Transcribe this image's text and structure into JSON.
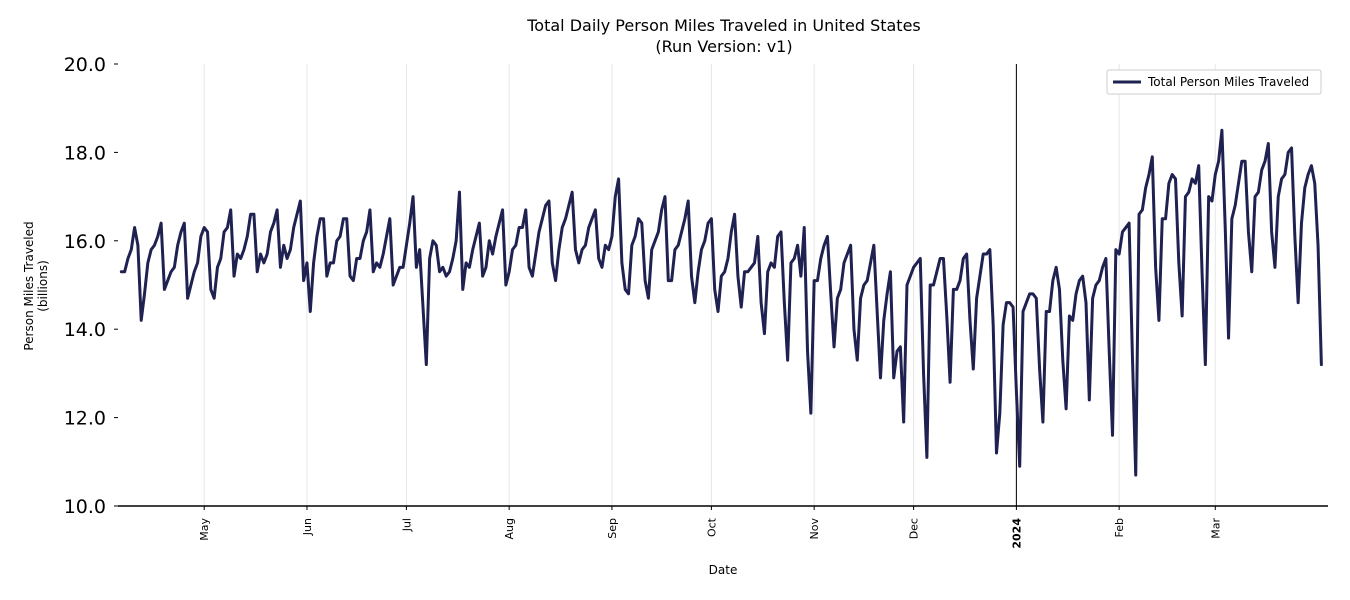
{
  "chart_data": {
    "type": "line",
    "title": "Total Daily Person Miles Traveled in United States",
    "subtitle": "(Run Version: v1)",
    "xlabel": "Date",
    "ylabel": "Person Miles Traveled",
    "ylabel_unit": "(billions)",
    "ylim": [
      10.0,
      20.0
    ],
    "yticks": [
      "10.0",
      "12.0",
      "14.0",
      "16.0",
      "18.0",
      "20.0"
    ],
    "x_range_days": [
      0,
      365
    ],
    "xticks": [
      {
        "label": "May",
        "day": 26,
        "bold": false
      },
      {
        "label": "Jun",
        "day": 57,
        "bold": false
      },
      {
        "label": "Jul",
        "day": 87,
        "bold": false
      },
      {
        "label": "Aug",
        "day": 118,
        "bold": false
      },
      {
        "label": "Sep",
        "day": 149,
        "bold": false
      },
      {
        "label": "Oct",
        "day": 179,
        "bold": false
      },
      {
        "label": "Nov",
        "day": 210,
        "bold": false
      },
      {
        "label": "Dec",
        "day": 240,
        "bold": false
      },
      {
        "label": "2024",
        "day": 271,
        "bold": true
      },
      {
        "label": "Feb",
        "day": 302,
        "bold": false
      },
      {
        "label": "Mar",
        "day": 331,
        "bold": false
      }
    ],
    "grid": "vertical",
    "reference_line_day": 271,
    "legend": {
      "position": "top-right"
    },
    "series": [
      {
        "name": "Total Person Miles Traveled",
        "color": "#1f2151",
        "start_day": 1,
        "values": [
          15.3,
          15.3,
          15.6,
          15.8,
          16.3,
          15.9,
          14.2,
          14.8,
          15.5,
          15.8,
          15.9,
          16.1,
          16.4,
          14.9,
          15.1,
          15.3,
          15.4,
          15.9,
          16.2,
          16.4,
          14.7,
          15.0,
          15.3,
          15.5,
          16.1,
          16.3,
          16.2,
          14.9,
          14.7,
          15.4,
          15.6,
          16.2,
          16.3,
          16.7,
          15.2,
          15.7,
          15.6,
          15.8,
          16.1,
          16.6,
          16.6,
          15.3,
          15.7,
          15.5,
          15.7,
          16.2,
          16.4,
          16.7,
          15.4,
          15.9,
          15.6,
          15.8,
          16.3,
          16.6,
          16.9,
          15.1,
          15.5,
          14.4,
          15.5,
          16.1,
          16.5,
          16.5,
          15.2,
          15.5,
          15.5,
          16.0,
          16.1,
          16.5,
          16.5,
          15.2,
          15.1,
          15.6,
          15.6,
          16.0,
          16.2,
          16.7,
          15.3,
          15.5,
          15.4,
          15.7,
          16.1,
          16.5,
          15.0,
          15.2,
          15.4,
          15.4,
          15.9,
          16.4,
          17.0,
          15.4,
          15.8,
          14.5,
          13.2,
          15.6,
          16.0,
          15.9,
          15.3,
          15.4,
          15.2,
          15.3,
          15.6,
          16.0,
          17.1,
          14.9,
          15.5,
          15.4,
          15.8,
          16.1,
          16.4,
          15.2,
          15.4,
          16.0,
          15.7,
          16.1,
          16.4,
          16.7,
          15.0,
          15.3,
          15.8,
          15.9,
          16.3,
          16.3,
          16.7,
          15.4,
          15.2,
          15.7,
          16.2,
          16.5,
          16.8,
          16.9,
          15.5,
          15.1,
          15.8,
          16.3,
          16.5,
          16.8,
          17.1,
          15.8,
          15.5,
          15.8,
          15.9,
          16.3,
          16.5,
          16.7,
          15.6,
          15.4,
          15.9,
          15.8,
          16.1,
          17.0,
          17.4,
          15.5,
          14.9,
          14.8,
          15.9,
          16.1,
          16.5,
          16.4,
          15.1,
          14.7,
          15.8,
          16.0,
          16.2,
          16.7,
          17.0,
          15.1,
          15.1,
          15.8,
          15.9,
          16.2,
          16.5,
          16.9,
          15.2,
          14.6,
          15.3,
          15.8,
          16.0,
          16.4,
          16.5,
          14.9,
          14.4,
          15.2,
          15.3,
          15.6,
          16.2,
          16.6,
          15.2,
          14.5,
          15.3,
          15.3,
          15.4,
          15.5,
          16.1,
          14.6,
          13.9,
          15.3,
          15.5,
          15.4,
          16.1,
          16.2,
          14.6,
          13.3,
          15.5,
          15.6,
          15.9,
          15.2,
          16.3,
          13.5,
          12.1,
          15.1,
          15.1,
          15.6,
          15.9,
          16.1,
          14.8,
          13.6,
          14.7,
          14.9,
          15.5,
          15.7,
          15.9,
          14.0,
          13.3,
          14.7,
          15.0,
          15.1,
          15.5,
          15.9,
          14.4,
          12.9,
          14.2,
          14.8,
          15.3,
          12.9,
          13.5,
          13.6,
          11.9,
          15.0,
          15.2,
          15.4,
          15.5,
          15.6,
          13.0,
          11.1,
          15.0,
          15.0,
          15.3,
          15.6,
          15.6,
          14.3,
          12.8,
          14.9,
          14.9,
          15.1,
          15.6,
          15.7,
          14.2,
          13.1,
          14.7,
          15.2,
          15.7,
          15.7,
          15.8,
          14.1,
          11.2,
          12.1,
          14.1,
          14.6,
          14.6,
          14.5,
          12.6,
          10.9,
          14.4,
          14.6,
          14.8,
          14.8,
          14.7,
          13.1,
          11.9,
          14.4,
          14.4,
          15.1,
          15.4,
          14.9,
          13.3,
          12.2,
          14.3,
          14.2,
          14.8,
          15.1,
          15.2,
          14.6,
          12.4,
          14.7,
          15.0,
          15.1,
          15.4,
          15.6,
          13.5,
          11.6,
          15.8,
          15.7,
          16.2,
          16.3,
          16.4,
          13.4,
          10.7,
          16.6,
          16.7,
          17.2,
          17.5,
          17.9,
          15.4,
          14.2,
          16.5,
          16.5,
          17.3,
          17.5,
          17.4,
          15.5,
          14.3,
          17.0,
          17.1,
          17.4,
          17.3,
          17.7,
          15.3,
          13.2,
          17.0,
          16.9,
          17.5,
          17.8,
          18.5,
          16.3,
          13.8,
          16.5,
          16.8,
          17.3,
          17.8,
          17.8,
          16.2,
          15.3,
          17.0,
          17.1,
          17.6,
          17.8,
          18.2,
          16.2,
          15.4,
          17.0,
          17.4,
          17.5,
          18.0,
          18.1,
          16.1,
          14.6,
          16.4,
          17.2,
          17.5,
          17.7,
          17.3,
          15.9,
          13.2
        ]
      }
    ]
  }
}
